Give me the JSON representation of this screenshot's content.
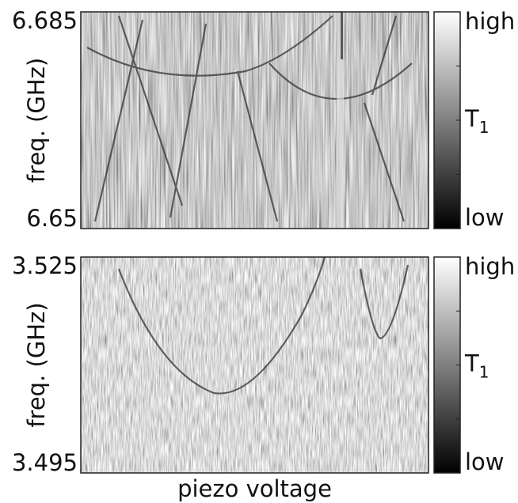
{
  "chart_data": [
    {
      "type": "heatmap",
      "ylabel": "freq. (GHz)",
      "ylim": [
        6.65,
        6.685
      ],
      "yticks": [
        6.65,
        6.685
      ],
      "colorbar": {
        "high": "high",
        "low": "low",
        "label": "T",
        "label_subscript": "1"
      }
    },
    {
      "type": "heatmap",
      "ylabel": "freq. (GHz)",
      "xlabel": "piezo voltage",
      "ylim": [
        3.495,
        3.525
      ],
      "yticks": [
        3.495,
        3.525
      ],
      "colorbar": {
        "high": "high",
        "low": "low",
        "label": "T",
        "label_subscript": "1"
      }
    }
  ]
}
